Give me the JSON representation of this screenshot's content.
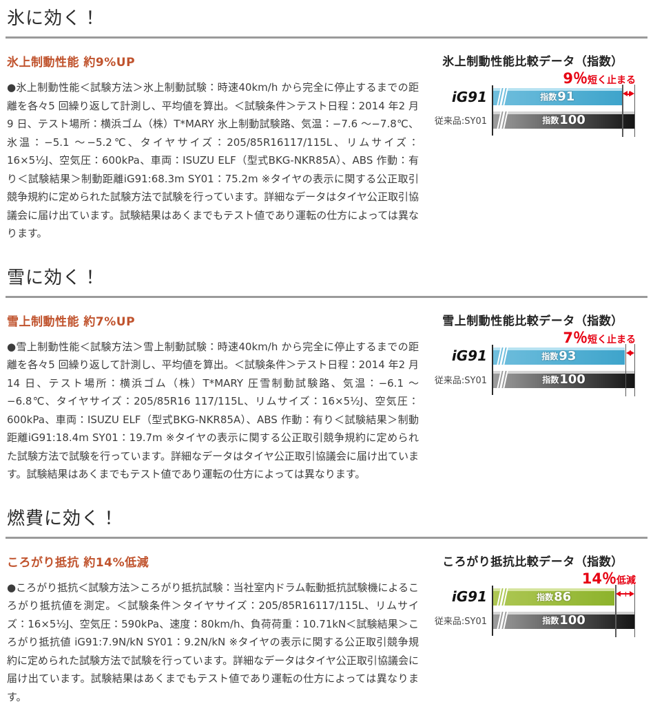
{
  "page": {
    "background": "#ffffff",
    "rule_color": "#9a9a9a"
  },
  "colors": {
    "subheading_accent": "#c0532d",
    "callout_red": "#e60012",
    "axis_black": "#2a2a2a"
  },
  "sections": [
    {
      "heading": "氷に効く！",
      "subheading": "氷上制動性能 約9%UP",
      "body": "●氷上制動性能＜試験方法＞氷上制動試験：時速40km/h から完全に停止するまでの距離を各々5 回繰り返して計測し、平均値を算出。＜試験条件＞テスト日程：2014 年2 月9 日、テスト場所：横浜ゴム（株）T*MARY 氷上制動試験路、気温：−7.6 〜−7.8℃、氷温：−5.1 〜−5.2℃、タイヤサイズ：205/85R16117/115L、リムサイズ：16×5½J、空気圧：600kPa、車両：ISUZU ELF（型式BKG-NKR85A）、ABS 作動：有り＜試験結果＞制動距離iG91:68.3m SY01：75.2m ※タイヤの表示に関する公正取引競争規約に定められた試験方法で試験を行っています。詳細なデータはタイヤ公正取引協議会に届け出ています。試験結果はあくまでもテスト値であり運転の仕方によっては異なります。",
      "chart": {
        "title": "氷上制動性能比較データ（指数）",
        "callout_big": "9％",
        "callout_small": "短く止まる",
        "rows": [
          {
            "label": "iG91",
            "unit": "指数",
            "value": 91
          },
          {
            "label": "従来品:SY01",
            "unit": "指数",
            "value": 100
          }
        ],
        "colors": {
          "ig_start": "#6fbedd",
          "ig_end": "#3ea4cb",
          "ig_stripe": "#bde5f3",
          "sy_start": "#9d9d9d",
          "sy_end": "#151515",
          "sy_stripe": "#d9d9d9"
        }
      }
    },
    {
      "heading": "雪に効く！",
      "subheading": "雪上制動性能 約7%UP",
      "body": "●雪上制動性能＜試験方法＞雪上制動試験：時速40km/h から完全に停止するまでの距離を各々5 回繰り返して計測し、平均値を算出。＜試験条件＞テスト日程：2014 年2 月14 日、テスト場所：横浜ゴム（株）T*MARY 圧雪制動試験路、気温：−6.1 〜−6.8℃、タイヤサイズ：205/85R16 117/115L、リムサイズ：16×5½J、空気圧：600kPa、車両：ISUZU ELF（型式BKG-NKR85A）、ABS 作動：有り＜試験結果＞制動距離iG91:18.4m SY01：19.7m ※タイヤの表示に関する公正取引競争規約に定められた試験方法で試験を行っています。詳細なデータはタイヤ公正取引協議会に届け出ています。試験結果はあくまでもテスト値であり運転の仕方によっては異なります。",
      "chart": {
        "title": "雪上制動性能比較データ（指数）",
        "callout_big": "7％",
        "callout_small": "短く止まる",
        "rows": [
          {
            "label": "iG91",
            "unit": "指数",
            "value": 93
          },
          {
            "label": "従来品:SY01",
            "unit": "指数",
            "value": 100
          }
        ],
        "colors": {
          "ig_start": "#6fbedd",
          "ig_end": "#3ea4cb",
          "ig_stripe": "#bde5f3",
          "sy_start": "#9d9d9d",
          "sy_end": "#151515",
          "sy_stripe": "#d9d9d9"
        }
      }
    },
    {
      "heading": "燃費に効く！",
      "subheading": "ころがり抵抗 約14%低減",
      "body": "●ころがり抵抗＜試験方法＞ころがり抵抗試験：当社室内ドラム転動抵抗試験機によるころがり抵抗値を測定。＜試験条件＞タイヤサイズ：205/85R16117/115L、リムサイズ：16×5½J、空気圧：590kPa、速度：80km/h、負荷荷重：10.71kN＜試験結果＞ころがり抵抗値 iG91:7.9N/kN SY01：9.2N/kN ※タイヤの表示に関する公正取引競争規約に定められた試験方法で試験を行っています。詳細なデータはタイヤ公正取引協議会に届け出ています。試験結果はあくまでもテスト値であり運転の仕方によっては異なります。",
      "chart": {
        "title": "ころがり抵抗比較データ（指数）",
        "callout_big": "14％",
        "callout_small": "低減",
        "rows": [
          {
            "label": "iG91",
            "unit": "指数",
            "value": 86
          },
          {
            "label": "従来品:SY01",
            "unit": "指数",
            "value": 100
          }
        ],
        "colors": {
          "ig_start": "#aec754",
          "ig_end": "#8db32c",
          "ig_stripe": "#d8e6a3",
          "sy_start": "#9d9d9d",
          "sy_end": "#151515",
          "sy_stripe": "#d9d9d9"
        }
      }
    }
  ],
  "chart_data": [
    {
      "type": "bar",
      "orientation": "horizontal",
      "title": "氷上制動性能比較データ（指数）",
      "categories": [
        "iG91",
        "従来品:SY01"
      ],
      "values": [
        91,
        100
      ],
      "value_labels": [
        "指数91",
        "指数100"
      ],
      "annotation": "9％短く止まる",
      "xlim": [
        0,
        100
      ],
      "axis_break": true,
      "legend": "none",
      "grid": false
    },
    {
      "type": "bar",
      "orientation": "horizontal",
      "title": "雪上制動性能比較データ（指数）",
      "categories": [
        "iG91",
        "従来品:SY01"
      ],
      "values": [
        93,
        100
      ],
      "value_labels": [
        "指数93",
        "指数100"
      ],
      "annotation": "7％短く止まる",
      "xlim": [
        0,
        100
      ],
      "axis_break": true,
      "legend": "none",
      "grid": false
    },
    {
      "type": "bar",
      "orientation": "horizontal",
      "title": "ころがり抵抗比較データ（指数）",
      "categories": [
        "iG91",
        "従来品:SY01"
      ],
      "values": [
        86,
        100
      ],
      "value_labels": [
        "指数86",
        "指数100"
      ],
      "annotation": "14％低減",
      "xlim": [
        0,
        100
      ],
      "axis_break": true,
      "legend": "none",
      "grid": false
    }
  ]
}
